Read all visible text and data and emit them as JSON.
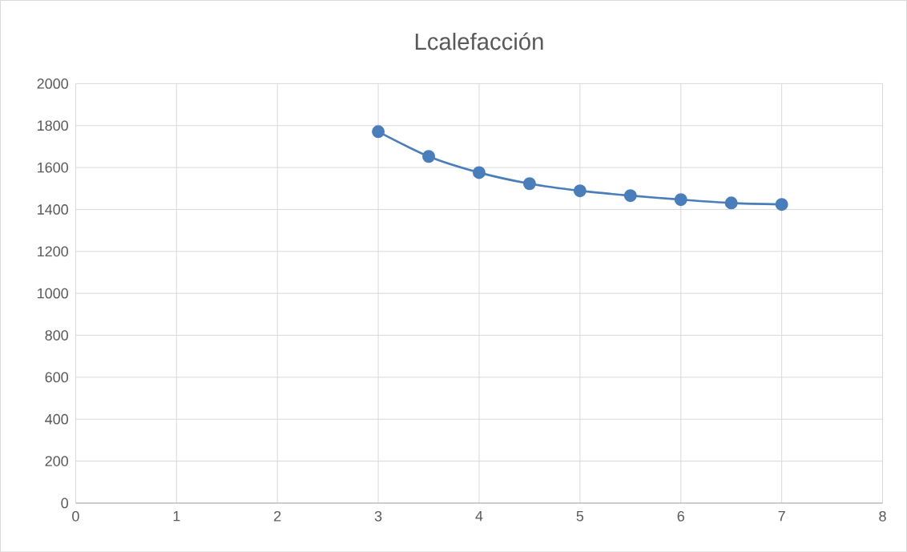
{
  "chart_data": {
    "type": "line",
    "title": "Lcalefacción",
    "x": [
      3,
      3.5,
      4,
      4.5,
      5,
      5.5,
      6,
      6.5,
      7
    ],
    "values": [
      1771,
      1653,
      1576,
      1523,
      1489,
      1466,
      1447,
      1431,
      1424
    ],
    "color": "#4a7ebb",
    "marker": "circle",
    "grid": true,
    "xlim": [
      0,
      8
    ],
    "xticks": [
      0,
      1,
      2,
      3,
      4,
      5,
      6,
      7,
      8
    ],
    "ylim": [
      0,
      2000
    ],
    "yticks": [
      0,
      200,
      400,
      600,
      800,
      1000,
      1200,
      1400,
      1600,
      1800,
      2000
    ]
  }
}
